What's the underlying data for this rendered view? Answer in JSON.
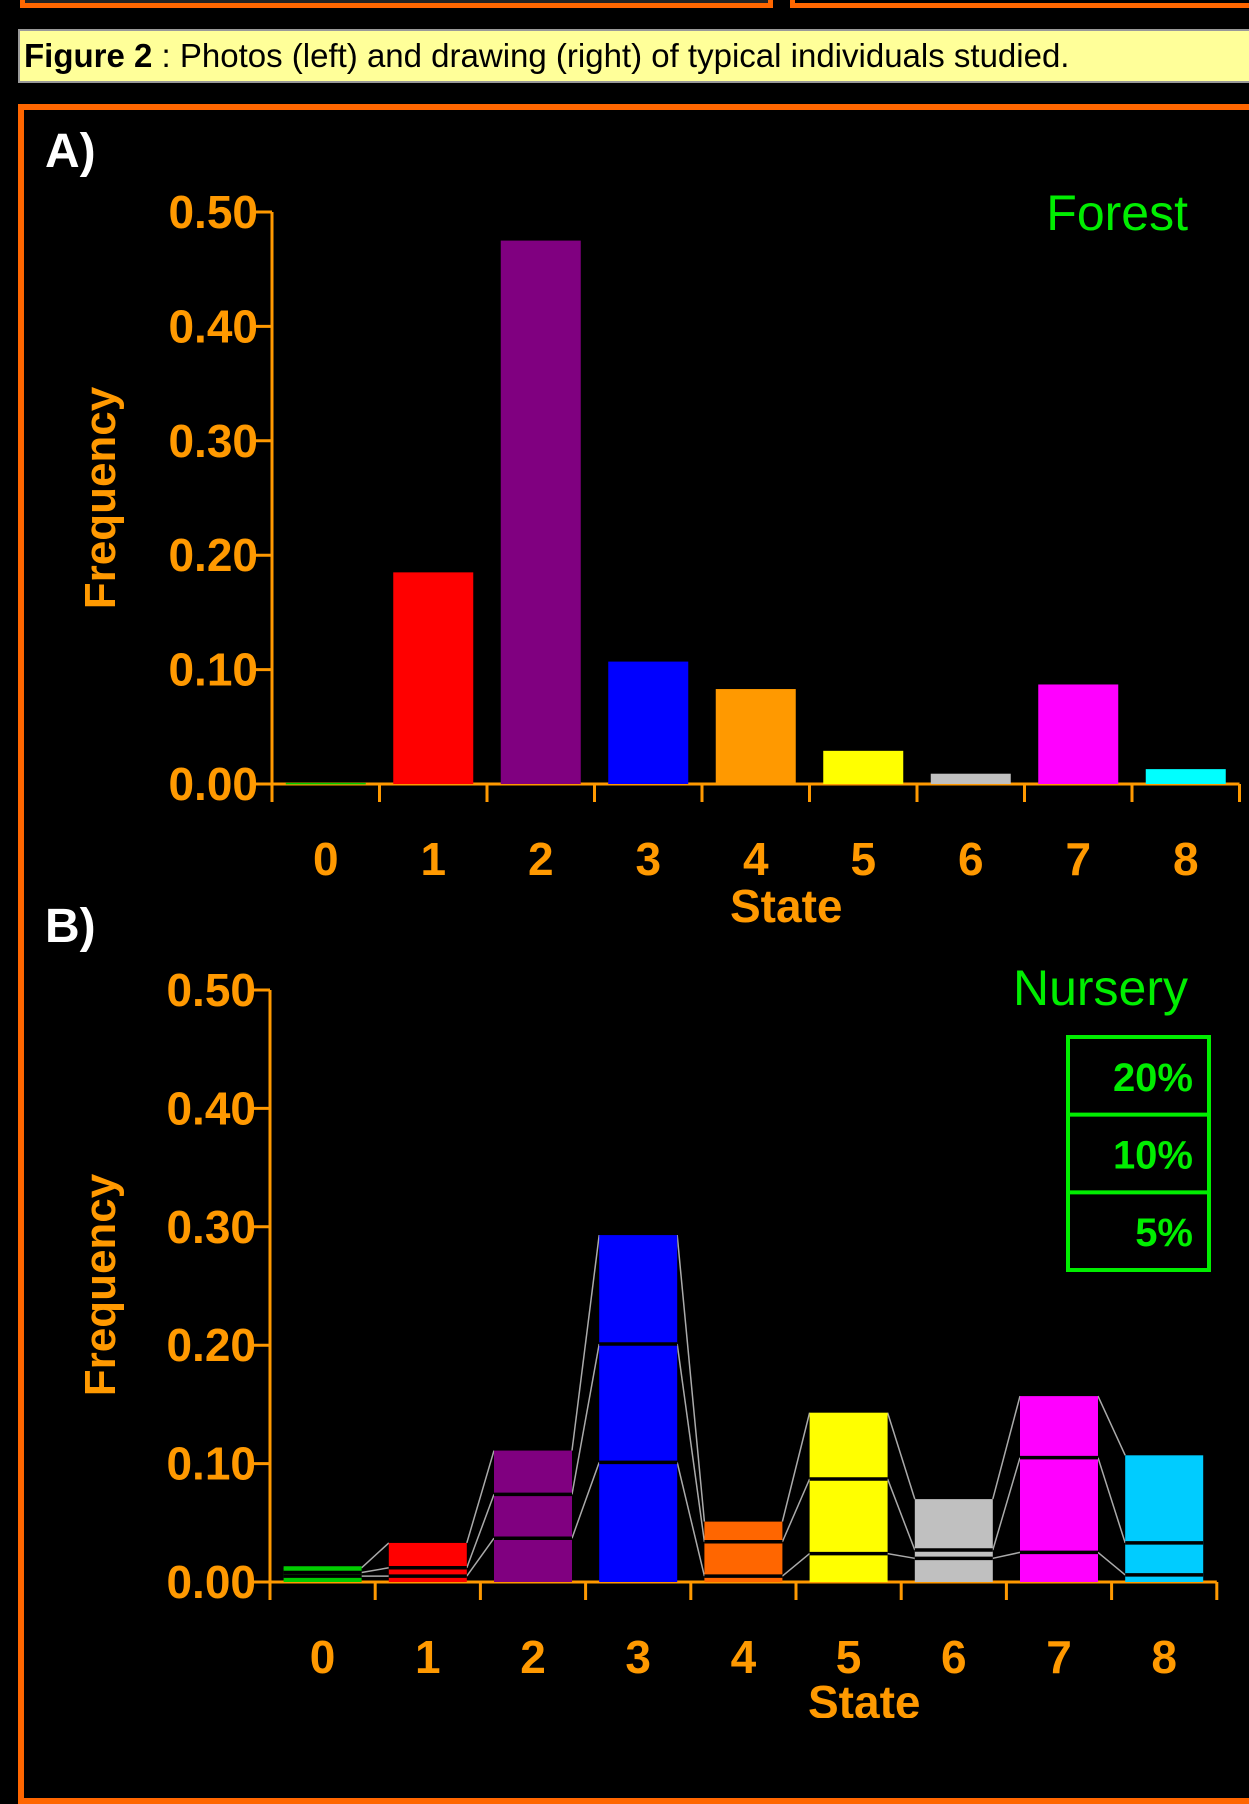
{
  "caption": {
    "label": "Figure 2",
    "text": " : Photos (left) and drawing (right) of typical individuals studied."
  },
  "colors": {
    "axis": "#ff9900",
    "frame": "#ff6600",
    "caption_bg": "#ffff99",
    "legend": "#00ee00"
  },
  "chart_data": [
    {
      "type": "bar",
      "panel_label": "A)",
      "title": "Forest",
      "xlabel": "State",
      "ylabel": "Frequency",
      "ylim": [
        0,
        0.5
      ],
      "yticks": [
        "0.00",
        "0.10",
        "0.20",
        "0.30",
        "0.40",
        "0.50"
      ],
      "categories": [
        "0",
        "1",
        "2",
        "3",
        "4",
        "5",
        "6",
        "7",
        "8"
      ],
      "values": [
        0.001,
        0.185,
        0.475,
        0.107,
        0.083,
        0.029,
        0.009,
        0.087,
        0.013
      ],
      "bar_colors": [
        "#00cc00",
        "#ff0000",
        "#800080",
        "#0000ff",
        "#ff9900",
        "#ffff00",
        "#c0c0c0",
        "#ff00ff",
        "#00ffff"
      ]
    },
    {
      "type": "bar",
      "panel_label": "B)",
      "title": "Nursery",
      "xlabel": "State",
      "ylabel": "Frequency",
      "ylim": [
        0,
        0.5
      ],
      "yticks": [
        "0.00",
        "0.10",
        "0.20",
        "0.30",
        "0.40",
        "0.50"
      ],
      "categories": [
        "0",
        "1",
        "2",
        "3",
        "4",
        "5",
        "6",
        "7",
        "8"
      ],
      "series": [
        {
          "name": "5%",
          "values": [
            0.005,
            0.005,
            0.037,
            0.101,
            0.005,
            0.024,
            0.02,
            0.025,
            0.006
          ]
        },
        {
          "name": "10%",
          "values": [
            0.008,
            0.012,
            0.074,
            0.201,
            0.034,
            0.087,
            0.027,
            0.105,
            0.033
          ]
        },
        {
          "name": "20%",
          "values": [
            0.012,
            0.033,
            0.111,
            0.293,
            0.051,
            0.143,
            0.07,
            0.157,
            0.107
          ]
        }
      ],
      "bar_colors": [
        "#00cc00",
        "#ff0000",
        "#800080",
        "#0000ff",
        "#ff6600",
        "#ffff00",
        "#c0c0c0",
        "#ff00ff",
        "#00ccff"
      ],
      "legend": [
        "20%",
        "10%",
        "5%"
      ]
    }
  ]
}
